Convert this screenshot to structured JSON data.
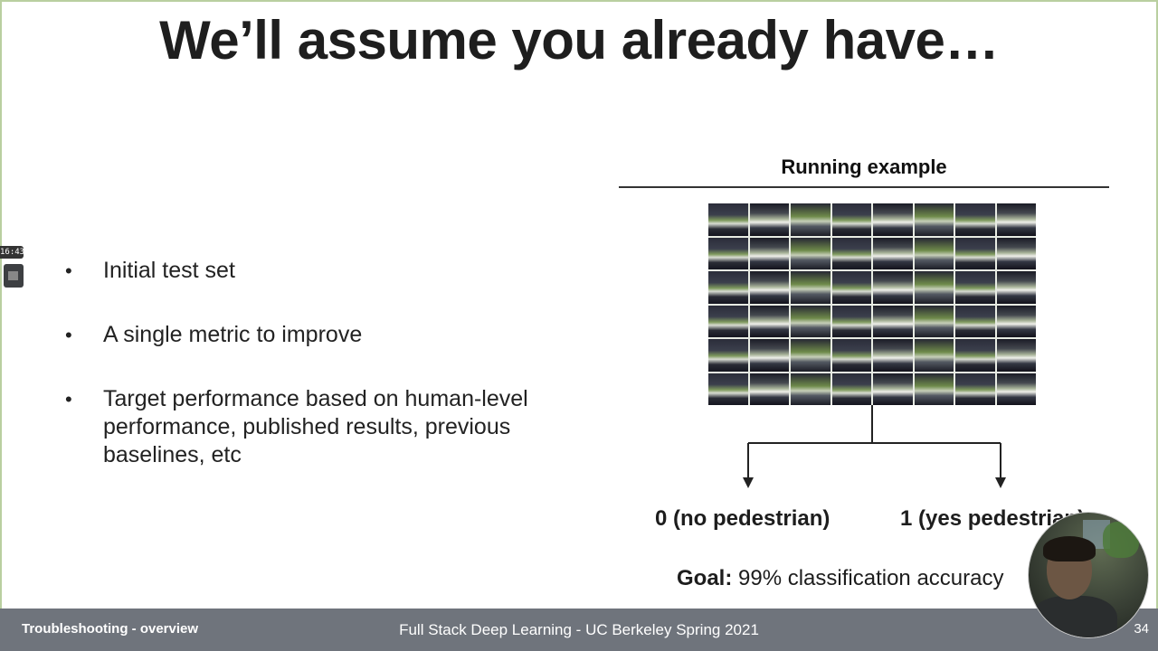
{
  "slide": {
    "title": "We’ll assume you already have…",
    "bullets": [
      "Initial test set",
      "A single metric to improve",
      "Target performance based on human-level performance, published results, previous baselines, etc"
    ]
  },
  "example": {
    "heading": "Running example",
    "class_0": "0 (no pedestrian)",
    "class_1": "1 (yes pedestrian)",
    "goal_label": "Goal:",
    "goal_text": "99% classification accuracy"
  },
  "footer": {
    "left": "Troubleshooting - overview",
    "center": "Full Stack Deep Learning - UC Berkeley Spring 2021",
    "page": "34"
  },
  "player": {
    "timestamp": "16:43"
  },
  "icons": {
    "play_control": "square-button-icon",
    "webcam": "presenter-webcam"
  }
}
